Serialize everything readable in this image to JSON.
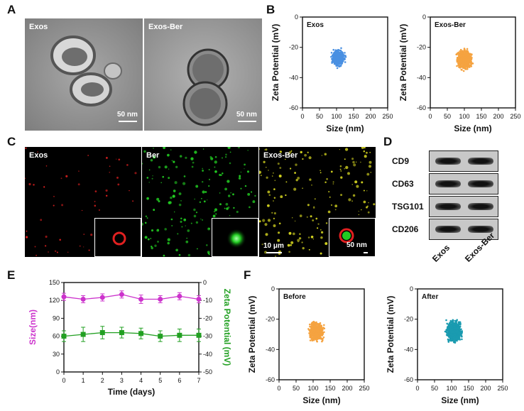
{
  "panels": {
    "A": {
      "letter": "A",
      "images": [
        {
          "label": "Exos",
          "scale": "50 nm"
        },
        {
          "label": "Exos-Ber",
          "scale": "50 nm"
        }
      ]
    },
    "B": {
      "letter": "B",
      "plots": [
        {
          "title": "Exos",
          "color": "#4a90e2"
        },
        {
          "title": "Exos-Ber",
          "color": "#f5a340"
        }
      ]
    },
    "C": {
      "letter": "C",
      "images": [
        {
          "label": "Exos",
          "dot_color": "#e02020",
          "inset_scale": ""
        },
        {
          "label": "Ber",
          "dot_color": "#22cc22",
          "inset_scale": ""
        },
        {
          "label": "Exos-Ber",
          "dot_color": "#d4d420",
          "inset_scale": "50 nm",
          "scale": "10 μm"
        }
      ]
    },
    "D": {
      "letter": "D",
      "rows": [
        "CD9",
        "CD63",
        "TSG101",
        "CD206"
      ],
      "lanes": [
        "Exos",
        "Exos-Ber"
      ]
    },
    "E": {
      "letter": "E"
    },
    "F": {
      "letter": "F",
      "plots": [
        {
          "title": "Before",
          "color": "#f5a340"
        },
        {
          "title": "After",
          "color": "#1a9bb0"
        }
      ]
    }
  },
  "chart_data": [
    {
      "id": "B-exos",
      "type": "scatter",
      "title": "Exos",
      "xlabel": "Size (nm)",
      "ylabel": "Zeta Potential (mV)",
      "xlim": [
        0,
        250
      ],
      "ylim": [
        -60,
        0
      ],
      "xticks": [
        0,
        50,
        100,
        150,
        200,
        250
      ],
      "yticks": [
        0,
        -20,
        -40,
        -60
      ],
      "cluster": {
        "x_center": 105,
        "x_spread": 30,
        "y_center": -27,
        "y_spread": 9,
        "n": 450
      },
      "color": "#4a90e2"
    },
    {
      "id": "B-exos-ber",
      "type": "scatter",
      "title": "Exos-Ber",
      "xlabel": "Size (nm)",
      "ylabel": "Zeta Potential (mV)",
      "xlim": [
        0,
        250
      ],
      "ylim": [
        -60,
        0
      ],
      "xticks": [
        0,
        50,
        100,
        150,
        200,
        250
      ],
      "yticks": [
        0,
        -20,
        -40,
        -60
      ],
      "cluster": {
        "x_center": 100,
        "x_spread": 38,
        "y_center": -28,
        "y_spread": 11,
        "n": 700
      },
      "color": "#f5a340"
    },
    {
      "id": "E",
      "type": "line",
      "xlabel": "Time (days)",
      "x": [
        0,
        1,
        2,
        3,
        4,
        5,
        6,
        7
      ],
      "xlim": [
        0,
        7
      ],
      "left_axis": {
        "label": "Size(nm)",
        "ylim": [
          0,
          150
        ],
        "ticks": [
          0,
          30,
          60,
          90,
          120,
          150
        ],
        "color": "#cc33cc"
      },
      "right_axis": {
        "label": "Zeta Potential (mV)",
        "ylim": [
          -50,
          0
        ],
        "ticks": [
          0,
          -10,
          -20,
          -30,
          -40,
          -50
        ],
        "color": "#22a022"
      },
      "series": [
        {
          "axis": "left",
          "color": "#cc33cc",
          "marker": "circle",
          "values": [
            126,
            122,
            125,
            130,
            122,
            122,
            127,
            122
          ],
          "errors": [
            6,
            6,
            6,
            6,
            7,
            6,
            6,
            6
          ]
        },
        {
          "axis": "right",
          "color": "#22a022",
          "marker": "square",
          "values": [
            -30,
            -29,
            -28,
            -28,
            -28.5,
            -30,
            -29.5,
            -29.5
          ],
          "errors": [
            3,
            4,
            3.5,
            3,
            3,
            3,
            3.5,
            3.5
          ]
        }
      ]
    },
    {
      "id": "F-before",
      "type": "scatter",
      "title": "Before",
      "xlabel": "Size (nm)",
      "ylabel": "Zeta Potential (mV)",
      "xlim": [
        0,
        250
      ],
      "ylim": [
        -60,
        0
      ],
      "xticks": [
        0,
        50,
        100,
        150,
        200,
        250
      ],
      "yticks": [
        0,
        -20,
        -40,
        -60
      ],
      "cluster": {
        "x_center": 110,
        "x_spread": 36,
        "y_center": -28,
        "y_spread": 10,
        "n": 700
      },
      "color": "#f5a340"
    },
    {
      "id": "F-after",
      "type": "scatter",
      "title": "After",
      "xlabel": "Size (nm)",
      "ylabel": "Zeta Potential (mV)",
      "xlim": [
        0,
        250
      ],
      "ylim": [
        -60,
        0
      ],
      "xticks": [
        0,
        50,
        100,
        150,
        200,
        250
      ],
      "yticks": [
        0,
        -20,
        -40,
        -60
      ],
      "cluster": {
        "x_center": 108,
        "x_spread": 36,
        "y_center": -28,
        "y_spread": 11,
        "n": 900
      },
      "color": "#1a9bb0"
    }
  ]
}
